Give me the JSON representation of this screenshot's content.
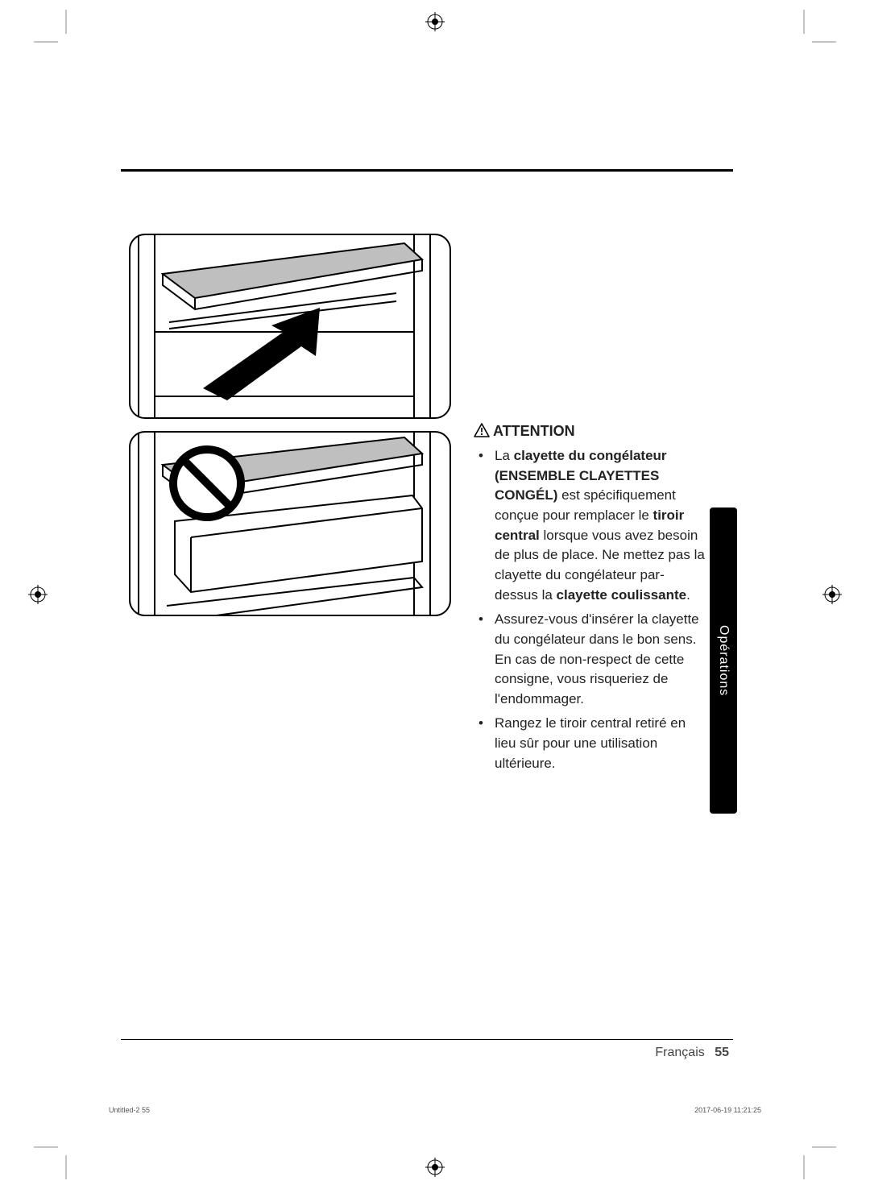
{
  "attention": {
    "heading": "ATTENTION",
    "bullets": [
      {
        "parts": [
          {
            "t": "La "
          },
          {
            "t": "clayette du congélateur (ENSEMBLE CLAYETTES CONGÉL)",
            "bold": true
          },
          {
            "t": " est spécifiquement conçue pour remplacer le "
          },
          {
            "t": "tiroir central",
            "bold": true
          },
          {
            "t": " lorsque vous avez besoin de plus de place. Ne mettez pas la clayette du congélateur par-dessus la "
          },
          {
            "t": "clayette coulissante",
            "bold": true
          },
          {
            "t": "."
          }
        ]
      },
      {
        "parts": [
          {
            "t": "Assurez-vous d'insérer la clayette du congélateur dans le bon sens. En cas de non-respect de cette consigne, vous risqueriez de l'endommager."
          }
        ]
      },
      {
        "parts": [
          {
            "t": "Rangez le tiroir central retiré en lieu sûr pour une utilisation ultérieure."
          }
        ]
      }
    ]
  },
  "side_tab": "Opérations",
  "footer": {
    "language": "Français",
    "page": "55"
  },
  "print_info": {
    "file": "Untitled-2   55",
    "timestamp": "2017-06-19    11:21:25"
  },
  "illustrations": {
    "top": {
      "prohibition": false,
      "arrow": true
    },
    "bottom": {
      "prohibition": true,
      "arrow": false
    }
  },
  "colors": {
    "line": "#000000",
    "shelf_fill": "#bfbfbf",
    "arrow_fill": "#000000",
    "page_bg": "#ffffff"
  }
}
